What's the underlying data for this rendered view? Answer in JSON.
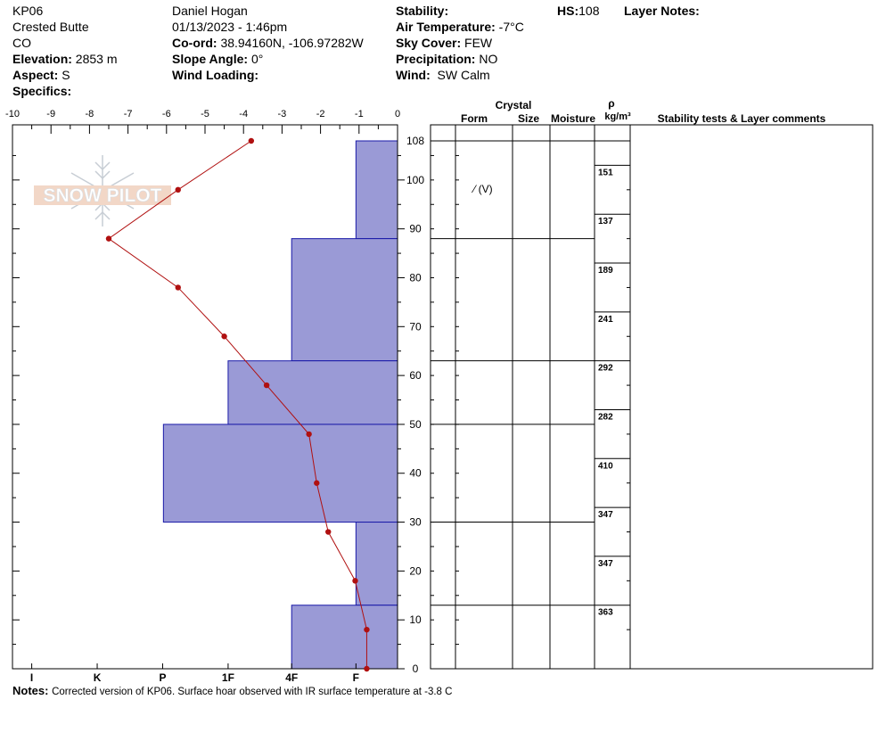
{
  "header": {
    "site_id": "KP06",
    "location": "Crested Butte",
    "state": "CO",
    "elevation_label": "Elevation:",
    "elevation": "2853 m",
    "aspect_label": "Aspect:",
    "aspect": "S",
    "specifics_label": "Specifics:",
    "observer": "Daniel Hogan",
    "datetime": "01/13/2023 - 1:46pm",
    "coord_label": "Co-ord:",
    "coord": "38.94160N, -106.97282W",
    "slope_label": "Slope Angle:",
    "slope": "0°",
    "wind_loading_label": "Wind Loading:",
    "stability_label": "Stability:",
    "air_temp_label": "Air Temperature:",
    "air_temp": "-7°C",
    "sky_label": "Sky Cover:",
    "sky": "FEW",
    "precip_label": "Precipitation:",
    "precip": "NO",
    "wind_label": "Wind:",
    "wind": "SW Calm",
    "hs_label": "HS:",
    "hs": "108",
    "layer_notes_label": "Layer Notes:"
  },
  "logo": {
    "text": "SNOW PILOT"
  },
  "table_headers": {
    "crystal": "Crystal",
    "form": "Form",
    "size": "Size",
    "moisture": "Moisture",
    "rho": "ρ",
    "density_unit": "kg/m³",
    "stability": "Stability tests & Layer comments"
  },
  "crystal_form_symbol": "⁄ (V)",
  "notes": {
    "label": "Notes:",
    "text": "Corrected version of KP06. Surface hoar observed with IR surface temperature at -3.8 C"
  },
  "chart_data": {
    "type": "snow-profile",
    "temperature_axis": {
      "range": [
        -10,
        0
      ],
      "ticks": [
        "-10",
        "-9",
        "-8",
        "-7",
        "-6",
        "-5",
        "-4",
        "-3",
        "-2",
        "-1",
        "0"
      ]
    },
    "hardness_axis": {
      "ticks": [
        "I",
        "K",
        "P",
        "1F",
        "4F",
        "F"
      ]
    },
    "height_axis": {
      "range": [
        0,
        110
      ],
      "ticks": [
        "108",
        "100",
        "90",
        "80",
        "70",
        "60",
        "50",
        "40",
        "30",
        "20",
        "10",
        "0"
      ]
    },
    "temperature_profile": [
      {
        "height": 108,
        "temp": -3.8
      },
      {
        "height": 98,
        "temp": -5.7
      },
      {
        "height": 88,
        "temp": -7.5
      },
      {
        "height": 78,
        "temp": -5.7
      },
      {
        "height": 68,
        "temp": -4.5
      },
      {
        "height": 58,
        "temp": -3.4
      },
      {
        "height": 48,
        "temp": -2.3
      },
      {
        "height": 38,
        "temp": -2.1
      },
      {
        "height": 28,
        "temp": -1.8
      },
      {
        "height": 18,
        "temp": -1.1
      },
      {
        "height": 8,
        "temp": -0.8
      },
      {
        "height": 0,
        "temp": -0.8
      }
    ],
    "layers": [
      {
        "top": 108,
        "bottom": 88,
        "hardness_temp_equiv": -1.08
      },
      {
        "top": 88,
        "bottom": 63,
        "hardness_temp_equiv": -2.75
      },
      {
        "top": 63,
        "bottom": 50,
        "hardness_temp_equiv": -4.4
      },
      {
        "top": 50,
        "bottom": 30,
        "hardness_temp_equiv": -6.08
      },
      {
        "top": 30,
        "bottom": 13,
        "hardness_temp_equiv": -1.08
      },
      {
        "top": 13,
        "bottom": 0,
        "hardness_temp_equiv": -2.75
      }
    ],
    "densities": [
      {
        "top": 103,
        "bottom": 93,
        "value": "151"
      },
      {
        "top": 93,
        "bottom": 83,
        "value": "137"
      },
      {
        "top": 83,
        "bottom": 73,
        "value": "189"
      },
      {
        "top": 73,
        "bottom": 63,
        "value": "241"
      },
      {
        "top": 63,
        "bottom": 53,
        "value": "292"
      },
      {
        "top": 53,
        "bottom": 43,
        "value": "282"
      },
      {
        "top": 43,
        "bottom": 33,
        "value": "410"
      },
      {
        "top": 33,
        "bottom": 23,
        "value": "347"
      },
      {
        "top": 23,
        "bottom": 13,
        "value": "347"
      },
      {
        "top": 13,
        "bottom": 3,
        "value": "363"
      }
    ],
    "colors": {
      "layer_fill": "#9a9ad6",
      "layer_stroke": "#1a1aa8",
      "temp_line": "#b01010"
    }
  }
}
